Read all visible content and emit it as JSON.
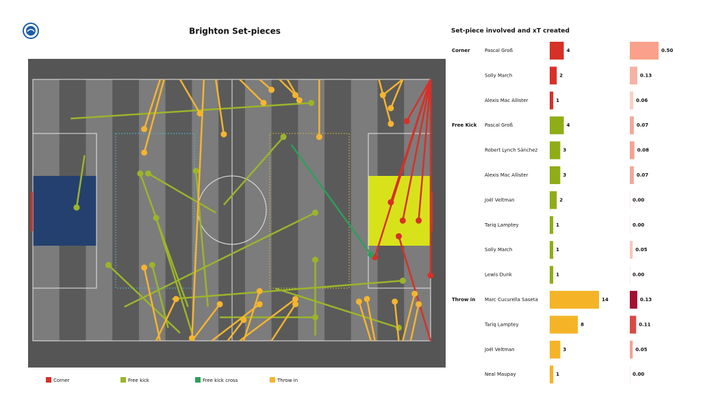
{
  "chart_data": {
    "type": "pass-map",
    "title": "Brighton Set-pieces",
    "xlim": [
      0,
      100
    ],
    "ylim": [
      0,
      100
    ],
    "series": [
      {
        "name": "Corner",
        "color": "#d73027",
        "passes": [
          [
            100,
            0,
            94,
            16
          ],
          [
            100,
            0,
            90,
            47
          ],
          [
            100,
            0,
            93,
            54
          ],
          [
            100,
            0,
            97,
            54
          ],
          [
            100,
            0,
            86,
            68
          ],
          [
            100,
            0,
            100,
            75
          ],
          [
            100,
            100,
            92,
            60
          ]
        ]
      },
      {
        "name": "Free kick",
        "color": "#9bb52a",
        "passes": [
          [
            9.5,
            15,
            70,
            9
          ],
          [
            13,
            29,
            11,
            49
          ],
          [
            48,
            48,
            63,
            22
          ],
          [
            39,
            87,
            27,
            36
          ],
          [
            46,
            51,
            29,
            36
          ],
          [
            44,
            87,
            41,
            35
          ],
          [
            40,
            97,
            31,
            53
          ],
          [
            37,
            97,
            19,
            71
          ],
          [
            34,
            95,
            30,
            71
          ],
          [
            23,
            87,
            71,
            51
          ],
          [
            71,
            98,
            71,
            69
          ],
          [
            35,
            84,
            93,
            77
          ],
          [
            47,
            91,
            71,
            91
          ],
          [
            61,
            80,
            92,
            95
          ]
        ]
      },
      {
        "name": "Free kick cross",
        "color": "#2e9e5b",
        "passes": [
          [
            65,
            25,
            85,
            67
          ]
        ]
      },
      {
        "name": "Throw in",
        "color": "#f5b430",
        "passes": [
          [
            32,
            0,
            28,
            19
          ],
          [
            33,
            0,
            28,
            28
          ],
          [
            37,
            0,
            42,
            13
          ],
          [
            46,
            0,
            48,
            21
          ],
          [
            43,
            0,
            40,
            99
          ],
          [
            52,
            0,
            58,
            9
          ],
          [
            57,
            0,
            60,
            4
          ],
          [
            62,
            0,
            66,
            6
          ],
          [
            64,
            0,
            67,
            8
          ],
          [
            72,
            0,
            72,
            22
          ],
          [
            93,
            0,
            88,
            6
          ],
          [
            93,
            0,
            90,
            11
          ],
          [
            87,
            0,
            90,
            17
          ],
          [
            31,
            100,
            36,
            84
          ],
          [
            32,
            100,
            28,
            72
          ],
          [
            40,
            100,
            47,
            86
          ],
          [
            45,
            100,
            57,
            86
          ],
          [
            52,
            100,
            66,
            84
          ],
          [
            60,
            100,
            66,
            86
          ],
          [
            53,
            100,
            57,
            81
          ],
          [
            49,
            100,
            53,
            92
          ],
          [
            85,
            100,
            82,
            85
          ],
          [
            86,
            100,
            84,
            84
          ],
          [
            92,
            100,
            91,
            85
          ],
          [
            93,
            100,
            96,
            82
          ],
          [
            95,
            100,
            97,
            86
          ]
        ]
      }
    ],
    "table": {
      "title": "Set-piece involved and xT created",
      "groups": [
        {
          "name": "Corner",
          "color": "#d73027",
          "rows": [
            {
              "name": "Pascal Groß",
              "count": 4,
              "xt": 0.5,
              "xt_label": "0.50",
              "xt_color": "#f9a18a"
            },
            {
              "name": "Solly March",
              "count": 2,
              "xt": 0.13,
              "xt_label": "0.13",
              "xt_color": "#f6b2a4"
            },
            {
              "name": "Alexis Mac Allister",
              "count": 1,
              "xt": 0.06,
              "xt_label": "0.06",
              "xt_color": "#f9d0c6"
            }
          ]
        },
        {
          "name": "Free Kick",
          "color": "#8fad15",
          "rows": [
            {
              "name": "Pascal Groß",
              "count": 4,
              "xt": 0.07,
              "xt_label": "0.07",
              "xt_color": "#f4a898"
            },
            {
              "name": "Robert Lynch Sánchez",
              "count": 3,
              "xt": 0.08,
              "xt_label": "0.08",
              "xt_color": "#f4a392"
            },
            {
              "name": "Alexis Mac Allister",
              "count": 3,
              "xt": 0.07,
              "xt_label": "0.07",
              "xt_color": "#f4a898"
            },
            {
              "name": "Joël Veltman",
              "count": 2,
              "xt": 0,
              "xt_label": "0.00",
              "xt_color": "#fde9e4"
            },
            {
              "name": "Tariq Lamptey",
              "count": 1,
              "xt": 0,
              "xt_label": "0.00",
              "xt_color": "#fde9e4"
            },
            {
              "name": "Solly March",
              "count": 1,
              "xt": 0.05,
              "xt_label": "0.05",
              "xt_color": "#f8c6bc"
            },
            {
              "name": "Lewis Dunk",
              "count": 1,
              "xt": 0,
              "xt_label": "0.00",
              "xt_color": "#fde9e4"
            }
          ]
        },
        {
          "name": "Throw in",
          "color": "#f5b427",
          "rows": [
            {
              "name": "Marc Cucurella Saseta",
              "count": 14,
              "xt": 0.13,
              "xt_label": "0.13",
              "xt_color": "#a50f32"
            },
            {
              "name": "Tariq Lamptey",
              "count": 8,
              "xt": 0.11,
              "xt_label": "0.11",
              "xt_color": "#d94a45"
            },
            {
              "name": "Joël Veltman",
              "count": 3,
              "xt": 0.05,
              "xt_label": "0.05",
              "xt_color": "#f2a393"
            },
            {
              "name": "Neal Maupay",
              "count": 1,
              "xt": 0,
              "xt_label": "0.00",
              "xt_color": "#fde9e4"
            }
          ]
        }
      ]
    }
  }
}
